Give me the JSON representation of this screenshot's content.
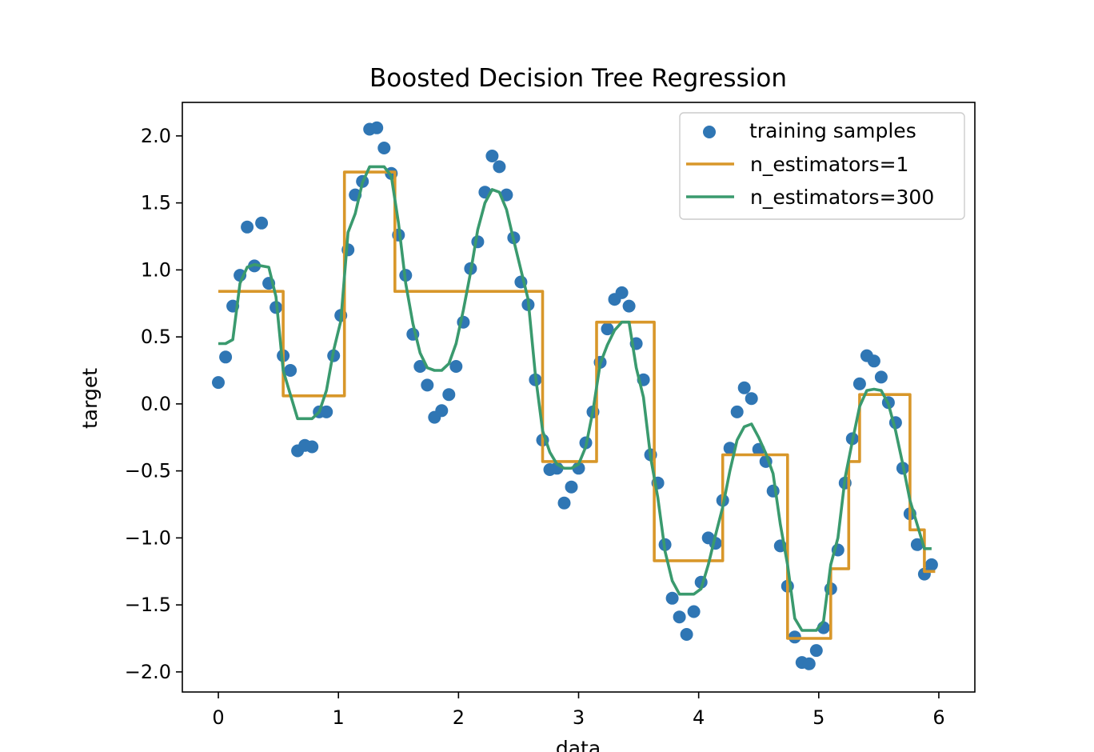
{
  "chart_data": {
    "type": "scatter+line",
    "title": "Boosted Decision Tree Regression",
    "xlabel": "data",
    "ylabel": "target",
    "xlim": [
      -0.3,
      6.3
    ],
    "ylim": [
      -2.15,
      2.25
    ],
    "xticks": [
      "0",
      "1",
      "2",
      "3",
      "4",
      "5",
      "6"
    ],
    "yticks": [
      "2.0",
      "1.5",
      "1.0",
      "0.5",
      "0.0",
      "−0.5",
      "−1.0",
      "−1.5",
      "−2.0"
    ],
    "grid": false,
    "legend_position": "top-right",
    "colors": {
      "samples": "#2f76b4",
      "n1": "#d8972a",
      "n300": "#3a9a6e",
      "frame": "#000000"
    },
    "series": [
      {
        "name": "training samples",
        "kind": "scatter",
        "points": [
          [
            0.0,
            0.16
          ],
          [
            0.06,
            0.35
          ],
          [
            0.12,
            0.73
          ],
          [
            0.18,
            0.96
          ],
          [
            0.24,
            1.32
          ],
          [
            0.3,
            1.03
          ],
          [
            0.36,
            1.35
          ],
          [
            0.42,
            0.9
          ],
          [
            0.48,
            0.72
          ],
          [
            0.54,
            0.36
          ],
          [
            0.6,
            0.25
          ],
          [
            0.66,
            -0.35
          ],
          [
            0.72,
            -0.31
          ],
          [
            0.78,
            -0.32
          ],
          [
            0.84,
            -0.06
          ],
          [
            0.9,
            -0.06
          ],
          [
            0.96,
            0.36
          ],
          [
            1.02,
            0.66
          ],
          [
            1.08,
            1.15
          ],
          [
            1.14,
            1.56
          ],
          [
            1.2,
            1.66
          ],
          [
            1.26,
            2.05
          ],
          [
            1.32,
            2.06
          ],
          [
            1.38,
            1.91
          ],
          [
            1.44,
            1.72
          ],
          [
            1.5,
            1.26
          ],
          [
            1.56,
            0.96
          ],
          [
            1.62,
            0.52
          ],
          [
            1.68,
            0.28
          ],
          [
            1.74,
            0.14
          ],
          [
            1.8,
            -0.1
          ],
          [
            1.86,
            -0.05
          ],
          [
            1.92,
            0.07
          ],
          [
            1.98,
            0.28
          ],
          [
            2.04,
            0.61
          ],
          [
            2.1,
            1.01
          ],
          [
            2.16,
            1.21
          ],
          [
            2.22,
            1.58
          ],
          [
            2.28,
            1.85
          ],
          [
            2.34,
            1.77
          ],
          [
            2.4,
            1.56
          ],
          [
            2.46,
            1.24
          ],
          [
            2.52,
            0.91
          ],
          [
            2.58,
            0.74
          ],
          [
            2.64,
            0.18
          ],
          [
            2.7,
            -0.27
          ],
          [
            2.76,
            -0.49
          ],
          [
            2.82,
            -0.48
          ],
          [
            2.88,
            -0.74
          ],
          [
            2.94,
            -0.62
          ],
          [
            3.0,
            -0.48
          ],
          [
            3.06,
            -0.29
          ],
          [
            3.12,
            -0.06
          ],
          [
            3.18,
            0.31
          ],
          [
            3.24,
            0.56
          ],
          [
            3.3,
            0.78
          ],
          [
            3.36,
            0.83
          ],
          [
            3.42,
            0.73
          ],
          [
            3.48,
            0.45
          ],
          [
            3.54,
            0.18
          ],
          [
            3.6,
            -0.38
          ],
          [
            3.66,
            -0.59
          ],
          [
            3.72,
            -1.05
          ],
          [
            3.78,
            -1.45
          ],
          [
            3.84,
            -1.59
          ],
          [
            3.9,
            -1.72
          ],
          [
            3.96,
            -1.55
          ],
          [
            4.02,
            -1.33
          ],
          [
            4.08,
            -1.0
          ],
          [
            4.14,
            -1.04
          ],
          [
            4.2,
            -0.72
          ],
          [
            4.26,
            -0.33
          ],
          [
            4.32,
            -0.06
          ],
          [
            4.38,
            0.12
          ],
          [
            4.44,
            0.04
          ],
          [
            4.5,
            -0.34
          ],
          [
            4.56,
            -0.43
          ],
          [
            4.62,
            -0.65
          ],
          [
            4.68,
            -1.06
          ],
          [
            4.74,
            -1.36
          ],
          [
            4.8,
            -1.74
          ],
          [
            4.86,
            -1.93
          ],
          [
            4.92,
            -1.94
          ],
          [
            4.98,
            -1.84
          ],
          [
            5.04,
            -1.67
          ],
          [
            5.1,
            -1.38
          ],
          [
            5.16,
            -1.09
          ],
          [
            5.22,
            -0.59
          ],
          [
            5.28,
            -0.26
          ],
          [
            5.34,
            0.15
          ],
          [
            5.4,
            0.36
          ],
          [
            5.46,
            0.32
          ],
          [
            5.52,
            0.2
          ],
          [
            5.58,
            0.01
          ],
          [
            5.64,
            -0.14
          ],
          [
            5.7,
            -0.48
          ],
          [
            5.76,
            -0.82
          ],
          [
            5.82,
            -1.05
          ],
          [
            5.88,
            -1.27
          ],
          [
            5.94,
            -1.2
          ]
        ]
      },
      {
        "name": "n_estimators=1",
        "kind": "step-line",
        "points": [
          [
            0.0,
            0.84
          ],
          [
            0.54,
            0.84
          ],
          [
            0.54,
            0.06
          ],
          [
            1.05,
            0.06
          ],
          [
            1.05,
            1.73
          ],
          [
            1.47,
            1.73
          ],
          [
            1.47,
            0.84
          ],
          [
            2.58,
            0.84
          ],
          [
            2.58,
            0.84
          ],
          [
            2.7,
            0.84
          ],
          [
            2.7,
            -0.43
          ],
          [
            3.15,
            -0.43
          ],
          [
            3.15,
            0.61
          ],
          [
            3.45,
            0.61
          ],
          [
            3.45,
            0.61
          ],
          [
            3.63,
            0.61
          ],
          [
            3.63,
            -1.17
          ],
          [
            4.2,
            -1.17
          ],
          [
            4.2,
            -0.38
          ],
          [
            4.74,
            -0.38
          ],
          [
            4.74,
            -1.75
          ],
          [
            5.1,
            -1.75
          ],
          [
            5.1,
            -1.23
          ],
          [
            5.25,
            -1.23
          ],
          [
            5.25,
            -0.43
          ],
          [
            5.34,
            -0.43
          ],
          [
            5.34,
            0.07
          ],
          [
            5.76,
            0.07
          ],
          [
            5.76,
            -0.94
          ],
          [
            5.88,
            -0.94
          ],
          [
            5.88,
            -1.25
          ],
          [
            5.97,
            -1.25
          ]
        ]
      },
      {
        "name": "n_estimators=300",
        "kind": "line",
        "points": [
          [
            0.0,
            0.45
          ],
          [
            0.06,
            0.45
          ],
          [
            0.12,
            0.48
          ],
          [
            0.18,
            0.9
          ],
          [
            0.24,
            1.02
          ],
          [
            0.3,
            1.04
          ],
          [
            0.36,
            1.03
          ],
          [
            0.42,
            1.02
          ],
          [
            0.48,
            0.8
          ],
          [
            0.54,
            0.25
          ],
          [
            0.6,
            0.07
          ],
          [
            0.66,
            -0.11
          ],
          [
            0.72,
            -0.11
          ],
          [
            0.78,
            -0.11
          ],
          [
            0.84,
            -0.06
          ],
          [
            0.9,
            0.1
          ],
          [
            0.96,
            0.4
          ],
          [
            1.02,
            0.62
          ],
          [
            1.08,
            1.28
          ],
          [
            1.14,
            1.42
          ],
          [
            1.2,
            1.65
          ],
          [
            1.26,
            1.77
          ],
          [
            1.32,
            1.77
          ],
          [
            1.38,
            1.77
          ],
          [
            1.44,
            1.7
          ],
          [
            1.5,
            1.35
          ],
          [
            1.56,
            0.9
          ],
          [
            1.62,
            0.6
          ],
          [
            1.68,
            0.38
          ],
          [
            1.74,
            0.27
          ],
          [
            1.8,
            0.25
          ],
          [
            1.86,
            0.25
          ],
          [
            1.92,
            0.3
          ],
          [
            1.98,
            0.45
          ],
          [
            2.04,
            0.7
          ],
          [
            2.1,
            0.98
          ],
          [
            2.16,
            1.3
          ],
          [
            2.22,
            1.5
          ],
          [
            2.28,
            1.6
          ],
          [
            2.34,
            1.58
          ],
          [
            2.4,
            1.45
          ],
          [
            2.46,
            1.22
          ],
          [
            2.52,
            1.0
          ],
          [
            2.58,
            0.78
          ],
          [
            2.64,
            0.22
          ],
          [
            2.7,
            -0.2
          ],
          [
            2.76,
            -0.36
          ],
          [
            2.82,
            -0.45
          ],
          [
            2.88,
            -0.48
          ],
          [
            2.94,
            -0.48
          ],
          [
            3.0,
            -0.45
          ],
          [
            3.06,
            -0.32
          ],
          [
            3.12,
            -0.05
          ],
          [
            3.18,
            0.3
          ],
          [
            3.24,
            0.44
          ],
          [
            3.3,
            0.55
          ],
          [
            3.36,
            0.61
          ],
          [
            3.42,
            0.61
          ],
          [
            3.48,
            0.27
          ],
          [
            3.54,
            0.05
          ],
          [
            3.6,
            -0.4
          ],
          [
            3.66,
            -0.7
          ],
          [
            3.72,
            -1.1
          ],
          [
            3.78,
            -1.32
          ],
          [
            3.84,
            -1.42
          ],
          [
            3.9,
            -1.42
          ],
          [
            3.96,
            -1.42
          ],
          [
            4.02,
            -1.38
          ],
          [
            4.08,
            -1.2
          ],
          [
            4.14,
            -0.98
          ],
          [
            4.2,
            -0.77
          ],
          [
            4.26,
            -0.5
          ],
          [
            4.32,
            -0.27
          ],
          [
            4.38,
            -0.17
          ],
          [
            4.44,
            -0.15
          ],
          [
            4.5,
            -0.25
          ],
          [
            4.56,
            -0.37
          ],
          [
            4.62,
            -0.52
          ],
          [
            4.68,
            -0.9
          ],
          [
            4.74,
            -1.2
          ],
          [
            4.8,
            -1.6
          ],
          [
            4.86,
            -1.69
          ],
          [
            4.92,
            -1.69
          ],
          [
            4.98,
            -1.69
          ],
          [
            5.04,
            -1.62
          ],
          [
            5.1,
            -1.2
          ],
          [
            5.16,
            -1.0
          ],
          [
            5.22,
            -0.55
          ],
          [
            5.28,
            -0.28
          ],
          [
            5.34,
            -0.02
          ],
          [
            5.4,
            0.1
          ],
          [
            5.46,
            0.11
          ],
          [
            5.52,
            0.1
          ],
          [
            5.58,
            0.0
          ],
          [
            5.64,
            -0.2
          ],
          [
            5.7,
            -0.45
          ],
          [
            5.76,
            -0.72
          ],
          [
            5.82,
            -0.9
          ],
          [
            5.88,
            -1.08
          ],
          [
            5.94,
            -1.08
          ]
        ]
      }
    ]
  }
}
